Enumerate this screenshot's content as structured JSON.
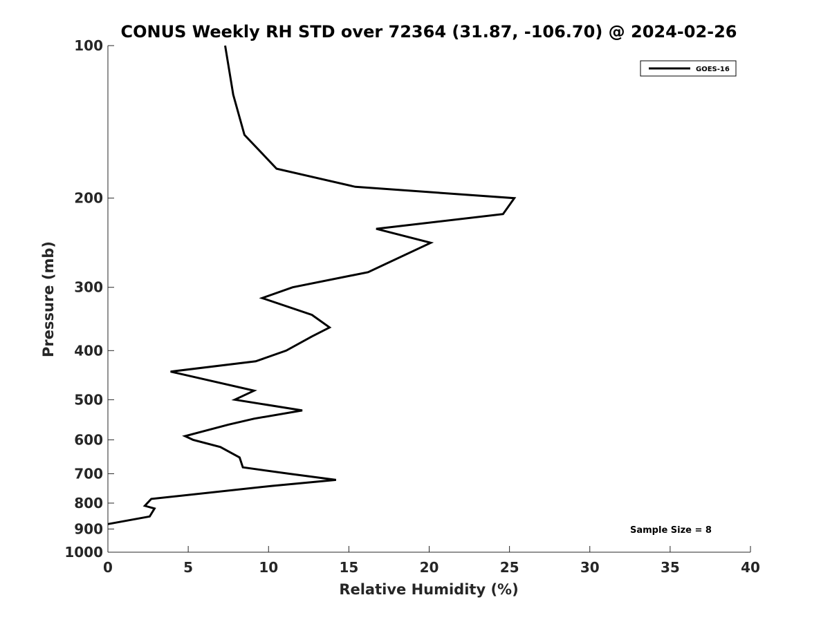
{
  "chart_data": {
    "type": "line",
    "title": "CONUS Weekly RH STD over 72364 (31.87, -106.70) @ 2024-02-26",
    "xlabel": "Relative Humidity (%)",
    "ylabel": "Pressure (mb)",
    "xlim": [
      0,
      40
    ],
    "ylim": [
      100,
      1000
    ],
    "yscale": "log",
    "y_reversed": true,
    "grid": false,
    "legend_position": "top-right",
    "x_ticks": [
      0,
      5,
      10,
      15,
      20,
      25,
      30,
      35,
      40
    ],
    "x_tick_labels": [
      "0",
      "5",
      "10",
      "15",
      "20",
      "25",
      "30",
      "35",
      "40"
    ],
    "y_ticks": [
      100,
      200,
      300,
      400,
      500,
      600,
      700,
      800,
      900,
      1000
    ],
    "y_tick_labels": [
      "100",
      "200",
      "300",
      "400",
      "500",
      "600",
      "700",
      "800",
      "900",
      "1000"
    ],
    "series": [
      {
        "name": "GOES-16",
        "color": "#000000",
        "x": [
          7.3,
          7.8,
          8.5,
          10.5,
          15.4,
          25.3,
          24.6,
          16.7,
          20.1,
          16.2,
          11.5,
          9.6,
          12.7,
          13.8,
          12.7,
          11.1,
          9.2,
          3.9,
          9.1,
          7.9,
          12.1,
          9.1,
          7.5,
          4.8,
          5.3,
          7.0,
          8.2,
          8.4,
          11.3,
          14.2,
          10.2,
          2.7,
          2.3,
          2.9,
          2.6,
          0.0
        ],
        "y": [
          100,
          125,
          150,
          175,
          190,
          200,
          215,
          230,
          245,
          280,
          300,
          315,
          340,
          360,
          375,
          400,
          420,
          440,
          480,
          500,
          525,
          545,
          560,
          590,
          600,
          620,
          650,
          680,
          700,
          720,
          740,
          785,
          810,
          820,
          850,
          880
        ]
      }
    ],
    "annotations": [
      "Sample Size = 8"
    ]
  }
}
